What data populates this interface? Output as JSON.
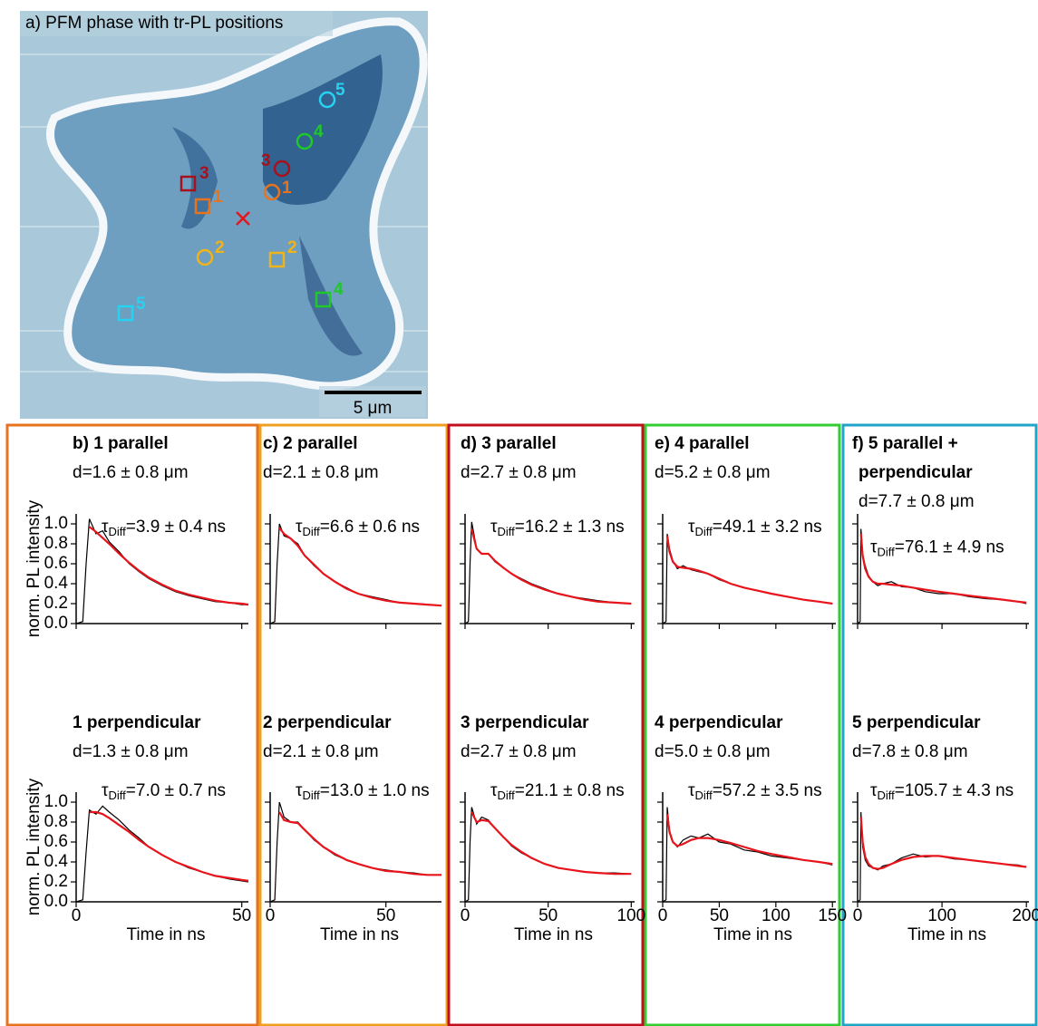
{
  "image_panel": {
    "title": "a) PFM phase with tr-PL positions",
    "scale_bar": "5 μm",
    "marker_labels": [
      "5",
      "4",
      "3",
      "1",
      "2",
      "5",
      "3",
      "1",
      "2",
      "4"
    ]
  },
  "chart_data": [
    {
      "type": "line",
      "title": "b) 1 parallel",
      "subtitle": "d=1.6 ± 0.8 μm",
      "annotation": {
        "symbol": "τ",
        "sub": "Diff",
        "text": "=3.9 ± 0.4 ns"
      },
      "ylabel": "norm. PL intensity",
      "x": [
        0,
        2,
        3,
        4,
        6,
        8,
        10,
        13,
        16,
        19,
        22,
        26,
        30,
        34,
        38,
        42,
        46,
        50,
        52
      ],
      "series": [
        {
          "color": "#000000",
          "values": [
            0,
            0.02,
            0.6,
            1.05,
            0.9,
            0.93,
            0.82,
            0.72,
            0.6,
            0.52,
            0.45,
            0.38,
            0.32,
            0.28,
            0.25,
            0.22,
            0.21,
            0.19,
            0.19
          ]
        },
        {
          "color": "#e8141b",
          "values": [
            null,
            null,
            null,
            0.97,
            0.92,
            0.86,
            0.8,
            0.7,
            0.61,
            0.53,
            0.46,
            0.39,
            0.33,
            0.29,
            0.26,
            0.23,
            0.21,
            0.2,
            0.19
          ]
        }
      ],
      "xlim": [
        0,
        52
      ],
      "xticks": [
        0,
        50
      ],
      "ylim": [
        0,
        1.1
      ],
      "yticks": [
        {
          "value": 0,
          "label": "0.0"
        },
        0.2,
        0.4,
        0.6,
        0.8,
        {
          "value": 1,
          "label": "1.0"
        }
      ]
    },
    {
      "type": "line",
      "title": "c) 2 parallel",
      "subtitle": "d=2.1 ± 0.8 μm",
      "annotation": {
        "symbol": "τ",
        "sub": "Diff",
        "text": "=6.6 ± 0.6 ns"
      },
      "x": [
        0,
        2,
        3,
        4,
        6,
        9,
        12,
        15,
        19,
        23,
        28,
        33,
        38,
        44,
        50,
        56,
        62,
        68,
        74
      ],
      "series": [
        {
          "color": "#000000",
          "values": [
            0,
            0.02,
            0.6,
            1.0,
            0.88,
            0.85,
            0.8,
            0.68,
            0.58,
            0.5,
            0.42,
            0.36,
            0.3,
            0.27,
            0.24,
            0.21,
            0.2,
            0.19,
            0.18
          ]
        },
        {
          "color": "#e8141b",
          "values": [
            null,
            null,
            null,
            0.96,
            0.9,
            0.85,
            0.78,
            0.68,
            0.59,
            0.5,
            0.42,
            0.35,
            0.3,
            0.26,
            0.23,
            0.21,
            0.2,
            0.19,
            0.18
          ]
        }
      ],
      "xlim": [
        0,
        74
      ],
      "xticks": [
        0,
        50
      ],
      "ylim": [
        0,
        1.1
      ],
      "yticks": [
        0,
        0.2,
        0.4,
        0.6,
        0.8,
        1
      ]
    },
    {
      "type": "line",
      "title": "d) 3 parallel",
      "subtitle": "d=2.7 ± 0.8 μm",
      "annotation": {
        "symbol": "τ",
        "sub": "Diff",
        "text": "=16.2 ± 1.3 ns"
      },
      "x": [
        0,
        2,
        3,
        4,
        7,
        10,
        14,
        18,
        23,
        28,
        34,
        40,
        48,
        56,
        64,
        72,
        80,
        90,
        100
      ],
      "series": [
        {
          "color": "#000000",
          "values": [
            0,
            0.02,
            0.6,
            1.02,
            0.75,
            0.7,
            0.7,
            0.62,
            0.56,
            0.5,
            0.45,
            0.4,
            0.35,
            0.3,
            0.27,
            0.25,
            0.23,
            0.21,
            0.2
          ]
        },
        {
          "color": "#e8141b",
          "values": [
            null,
            null,
            null,
            0.95,
            0.75,
            0.7,
            0.7,
            0.63,
            0.56,
            0.5,
            0.44,
            0.39,
            0.34,
            0.3,
            0.27,
            0.24,
            0.22,
            0.21,
            0.2
          ]
        }
      ],
      "xlim": [
        0,
        102
      ],
      "xticks": [
        0,
        50,
        100
      ],
      "ylim": [
        0,
        1.1
      ],
      "yticks": [
        0,
        0.2,
        0.4,
        0.6,
        0.8,
        1
      ]
    },
    {
      "type": "line",
      "title": "e) 4 parallel",
      "subtitle": "d=5.2 ± 0.8 μm",
      "annotation": {
        "symbol": "τ",
        "sub": "Diff",
        "text": "=49.1 ± 3.2 ns"
      },
      "x": [
        0,
        3,
        4,
        6,
        9,
        13,
        18,
        25,
        32,
        40,
        50,
        60,
        72,
        84,
        96,
        110,
        124,
        138,
        150
      ],
      "series": [
        {
          "color": "#000000",
          "values": [
            0,
            0.02,
            0.9,
            0.75,
            0.63,
            0.55,
            0.58,
            0.54,
            0.52,
            0.5,
            0.44,
            0.4,
            0.36,
            0.33,
            0.3,
            0.27,
            0.24,
            0.22,
            0.2
          ]
        },
        {
          "color": "#e8141b",
          "values": [
            null,
            null,
            0.88,
            0.72,
            0.62,
            0.57,
            0.56,
            0.55,
            0.53,
            0.5,
            0.45,
            0.4,
            0.36,
            0.33,
            0.3,
            0.27,
            0.24,
            0.22,
            0.2
          ]
        }
      ],
      "xlim": [
        0,
        153
      ],
      "xticks": [
        0,
        50,
        100,
        150
      ],
      "ylim": [
        0,
        1.1
      ],
      "yticks": [
        0,
        0.2,
        0.4,
        0.6,
        0.8,
        1
      ]
    },
    {
      "type": "line",
      "title": [
        "f) 5 parallel +",
        "perpendicular"
      ],
      "subtitle": "d=7.7 ± 0.8 μm",
      "annotation": {
        "symbol": "τ",
        "sub": "Diff",
        "text": "=76.1 ± 4.9 ns"
      },
      "x": [
        0,
        3,
        4,
        6,
        9,
        13,
        18,
        24,
        30,
        40,
        52,
        66,
        80,
        96,
        114,
        132,
        152,
        172,
        190,
        200
      ],
      "series": [
        {
          "color": "#000000",
          "values": [
            0,
            0.02,
            0.95,
            0.7,
            0.58,
            0.48,
            0.42,
            0.38,
            0.4,
            0.42,
            0.37,
            0.36,
            0.32,
            0.3,
            0.3,
            0.27,
            0.25,
            0.24,
            0.22,
            0.2
          ]
        },
        {
          "color": "#e8141b",
          "values": [
            null,
            null,
            0.9,
            0.68,
            0.55,
            0.47,
            0.42,
            0.4,
            0.4,
            0.39,
            0.38,
            0.36,
            0.34,
            0.32,
            0.3,
            0.28,
            0.26,
            0.24,
            0.22,
            0.21
          ]
        }
      ],
      "xlim": [
        0,
        203
      ],
      "xticks": [
        0,
        100,
        200
      ],
      "ylim": [
        0,
        1.1
      ],
      "yticks": [
        0,
        0.2,
        0.4,
        0.6,
        0.8,
        1
      ]
    },
    {
      "type": "line",
      "title": "1 perpendicular",
      "subtitle": "d=1.3 ± 0.8 μm",
      "annotation": {
        "symbol": "τ",
        "sub": "Diff",
        "text": "=7.0 ± 0.7 ns"
      },
      "ylabel": "norm. PL intensity",
      "xlabel": "Time in ns",
      "x": [
        0,
        2,
        3,
        4,
        6,
        8,
        10,
        13,
        16,
        19,
        22,
        26,
        30,
        34,
        38,
        42,
        46,
        50,
        52
      ],
      "series": [
        {
          "color": "#000000",
          "values": [
            0,
            0.02,
            0.5,
            0.92,
            0.88,
            0.96,
            0.9,
            0.82,
            0.72,
            0.64,
            0.55,
            0.47,
            0.4,
            0.34,
            0.3,
            0.26,
            0.23,
            0.21,
            0.2
          ]
        },
        {
          "color": "#e8141b",
          "values": [
            null,
            null,
            null,
            0.9,
            0.9,
            0.88,
            0.84,
            0.77,
            0.7,
            0.62,
            0.55,
            0.47,
            0.4,
            0.35,
            0.3,
            0.26,
            0.24,
            0.22,
            0.21
          ]
        }
      ],
      "xlim": [
        0,
        52
      ],
      "xticks": [
        0,
        50
      ],
      "ylim": [
        0,
        1.1
      ],
      "yticks": [
        {
          "value": 0,
          "label": "0.0"
        },
        0.2,
        0.4,
        0.6,
        0.8,
        {
          "value": 1,
          "label": "1.0"
        }
      ]
    },
    {
      "type": "line",
      "title": "2 perpendicular",
      "subtitle": "d=2.1 ± 0.8 μm",
      "annotation": {
        "symbol": "τ",
        "sub": "Diff",
        "text": "=13.0 ± 1.0 ns"
      },
      "xlabel": "Time in ns",
      "x": [
        0,
        2,
        3,
        4,
        6,
        9,
        12,
        15,
        19,
        23,
        28,
        33,
        38,
        44,
        50,
        56,
        62,
        68,
        74
      ],
      "series": [
        {
          "color": "#000000",
          "values": [
            0,
            0.02,
            0.6,
            1.0,
            0.85,
            0.8,
            0.8,
            0.72,
            0.62,
            0.55,
            0.47,
            0.42,
            0.38,
            0.34,
            0.32,
            0.3,
            0.29,
            0.27,
            0.27
          ]
        },
        {
          "color": "#e8141b",
          "values": [
            null,
            null,
            null,
            0.9,
            0.82,
            0.8,
            0.79,
            0.72,
            0.63,
            0.55,
            0.48,
            0.42,
            0.38,
            0.34,
            0.31,
            0.3,
            0.28,
            0.27,
            0.27
          ]
        }
      ],
      "xlim": [
        0,
        74
      ],
      "xticks": [
        0,
        50
      ],
      "ylim": [
        0,
        1.1
      ],
      "yticks": [
        0,
        0.2,
        0.4,
        0.6,
        0.8,
        1
      ]
    },
    {
      "type": "line",
      "title": "3 perpendicular",
      "subtitle": "d=2.7 ± 0.8 μm",
      "annotation": {
        "symbol": "τ",
        "sub": "Diff",
        "text": "=21.1 ± 0.8 ns"
      },
      "xlabel": "Time in ns",
      "x": [
        0,
        2,
        3,
        4,
        7,
        10,
        14,
        18,
        23,
        28,
        34,
        40,
        48,
        56,
        64,
        72,
        80,
        90,
        100
      ],
      "series": [
        {
          "color": "#000000",
          "values": [
            0,
            0.02,
            0.6,
            0.95,
            0.78,
            0.85,
            0.82,
            0.74,
            0.65,
            0.56,
            0.49,
            0.44,
            0.38,
            0.34,
            0.32,
            0.3,
            0.29,
            0.29,
            0.28
          ]
        },
        {
          "color": "#e8141b",
          "values": [
            null,
            null,
            null,
            0.9,
            0.8,
            0.82,
            0.81,
            0.74,
            0.65,
            0.57,
            0.5,
            0.44,
            0.38,
            0.34,
            0.32,
            0.3,
            0.29,
            0.28,
            0.28
          ]
        }
      ],
      "xlim": [
        0,
        102
      ],
      "xticks": [
        0,
        50,
        100
      ],
      "ylim": [
        0,
        1.1
      ],
      "yticks": [
        0,
        0.2,
        0.4,
        0.6,
        0.8,
        1
      ]
    },
    {
      "type": "line",
      "title": "4 perpendicular",
      "subtitle": "d=5.0 ± 0.8 μm",
      "annotation": {
        "symbol": "τ",
        "sub": "Diff",
        "text": "=57.2 ± 3.5 ns"
      },
      "xlabel": "Time in ns",
      "x": [
        0,
        3,
        4,
        6,
        9,
        13,
        18,
        25,
        32,
        40,
        50,
        60,
        72,
        84,
        96,
        110,
        124,
        138,
        150
      ],
      "series": [
        {
          "color": "#000000",
          "values": [
            0,
            0.02,
            0.95,
            0.72,
            0.6,
            0.55,
            0.62,
            0.66,
            0.64,
            0.68,
            0.6,
            0.58,
            0.52,
            0.5,
            0.46,
            0.44,
            0.42,
            0.4,
            0.37
          ]
        },
        {
          "color": "#e8141b",
          "values": [
            null,
            null,
            0.88,
            0.7,
            0.6,
            0.56,
            0.58,
            0.62,
            0.64,
            0.64,
            0.62,
            0.59,
            0.55,
            0.51,
            0.48,
            0.45,
            0.42,
            0.4,
            0.38
          ]
        }
      ],
      "xlim": [
        0,
        153
      ],
      "xticks": [
        0,
        50,
        100,
        150
      ],
      "ylim": [
        0,
        1.1
      ],
      "yticks": [
        0,
        0.2,
        0.4,
        0.6,
        0.8,
        1
      ]
    },
    {
      "type": "line",
      "title": "5 perpendicular",
      "subtitle": "d=7.8 ± 0.8 μm",
      "annotation": {
        "symbol": "τ",
        "sub": "Diff",
        "text": "=105.7 ± 4.3 ns"
      },
      "xlabel": "Time in ns",
      "x": [
        0,
        3,
        4,
        6,
        9,
        13,
        18,
        24,
        30,
        40,
        52,
        66,
        80,
        96,
        114,
        132,
        152,
        172,
        190,
        200
      ],
      "series": [
        {
          "color": "#000000",
          "values": [
            0,
            0.02,
            0.9,
            0.55,
            0.42,
            0.36,
            0.34,
            0.32,
            0.36,
            0.38,
            0.44,
            0.48,
            0.45,
            0.46,
            0.43,
            0.42,
            0.4,
            0.38,
            0.37,
            0.35
          ]
        },
        {
          "color": "#e8141b",
          "values": [
            null,
            null,
            0.85,
            0.6,
            0.45,
            0.38,
            0.34,
            0.33,
            0.34,
            0.38,
            0.42,
            0.45,
            0.46,
            0.46,
            0.44,
            0.42,
            0.4,
            0.38,
            0.36,
            0.35
          ]
        }
      ],
      "xlim": [
        0,
        203
      ],
      "xticks": [
        0,
        100,
        200
      ],
      "ylim": [
        0,
        1.1
      ],
      "yticks": [
        0,
        0.2,
        0.4,
        0.6,
        0.8,
        1
      ]
    }
  ]
}
